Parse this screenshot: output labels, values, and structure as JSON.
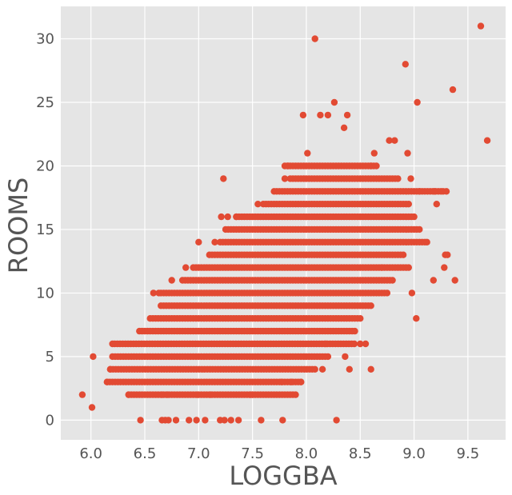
{
  "chart_data": {
    "type": "scatter",
    "title": "",
    "xlabel": "LOGGBA",
    "ylabel": "ROOMS",
    "xlim": [
      5.72,
      9.85
    ],
    "ylim": [
      -1.55,
      32.55
    ],
    "x_ticks": [
      6.0,
      6.5,
      7.0,
      7.5,
      8.0,
      8.5,
      9.0,
      9.5
    ],
    "x_tick_labels": [
      "6.0",
      "6.5",
      "7.0",
      "7.5",
      "8.0",
      "8.5",
      "9.0",
      "9.5"
    ],
    "y_ticks": [
      0,
      5,
      10,
      15,
      20,
      25,
      30
    ],
    "y_tick_labels": [
      "0",
      "5",
      "10",
      "15",
      "20",
      "25",
      "30"
    ],
    "grid": true,
    "style": {
      "background": "#E5E5E5",
      "point_color": "#E24A33",
      "grid_color": "#FFFFFF"
    },
    "series_note": "dense band: for each integer ROOMS value, points span an approximate LOGGBA range",
    "row_ranges": [
      {
        "rooms": 2,
        "x_min": 6.35,
        "x_max": 7.9
      },
      {
        "rooms": 3,
        "x_min": 6.15,
        "x_max": 7.95
      },
      {
        "rooms": 4,
        "x_min": 6.18,
        "x_max": 8.1
      },
      {
        "rooms": 5,
        "x_min": 6.2,
        "x_max": 8.2
      },
      {
        "rooms": 6,
        "x_min": 6.22,
        "x_max": 8.45
      },
      {
        "rooms": 7,
        "x_min": 6.45,
        "x_max": 8.45
      },
      {
        "rooms": 8,
        "x_min": 6.55,
        "x_max": 8.5
      },
      {
        "rooms": 9,
        "x_min": 6.65,
        "x_max": 8.6
      },
      {
        "rooms": 10,
        "x_min": 6.65,
        "x_max": 8.75
      },
      {
        "rooms": 11,
        "x_min": 6.85,
        "x_max": 8.8
      },
      {
        "rooms": 12,
        "x_min": 6.95,
        "x_max": 8.95
      },
      {
        "rooms": 13,
        "x_min": 7.1,
        "x_max": 8.9
      },
      {
        "rooms": 14,
        "x_min": 7.2,
        "x_max": 9.1
      },
      {
        "rooms": 15,
        "x_min": 7.25,
        "x_max": 9.05
      },
      {
        "rooms": 16,
        "x_min": 7.35,
        "x_max": 9.0
      },
      {
        "rooms": 17,
        "x_min": 7.6,
        "x_max": 8.95
      },
      {
        "rooms": 18,
        "x_min": 7.7,
        "x_max": 9.25
      },
      {
        "rooms": 19,
        "x_min": 7.85,
        "x_max": 8.85
      },
      {
        "rooms": 20,
        "x_min": 7.8,
        "x_max": 8.65
      }
    ],
    "points": [
      {
        "x": 5.92,
        "y": 2
      },
      {
        "x": 6.01,
        "y": 1
      },
      {
        "x": 6.02,
        "y": 5
      },
      {
        "x": 6.46,
        "y": 0
      },
      {
        "x": 6.66,
        "y": 0
      },
      {
        "x": 6.69,
        "y": 0
      },
      {
        "x": 6.72,
        "y": 0
      },
      {
        "x": 6.79,
        "y": 0
      },
      {
        "x": 6.91,
        "y": 0
      },
      {
        "x": 6.98,
        "y": 0
      },
      {
        "x": 7.06,
        "y": 0
      },
      {
        "x": 7.2,
        "y": 0
      },
      {
        "x": 7.24,
        "y": 0
      },
      {
        "x": 7.3,
        "y": 0
      },
      {
        "x": 7.37,
        "y": 0
      },
      {
        "x": 7.58,
        "y": 0
      },
      {
        "x": 7.78,
        "y": 0
      },
      {
        "x": 8.28,
        "y": 0
      },
      {
        "x": 6.66,
        "y": 2
      },
      {
        "x": 6.71,
        "y": 2
      },
      {
        "x": 6.99,
        "y": 2
      },
      {
        "x": 7.11,
        "y": 2
      },
      {
        "x": 7.48,
        "y": 2
      },
      {
        "x": 6.58,
        "y": 10
      },
      {
        "x": 6.63,
        "y": 10
      },
      {
        "x": 6.75,
        "y": 11
      },
      {
        "x": 6.88,
        "y": 12
      },
      {
        "x": 7.23,
        "y": 19
      },
      {
        "x": 7.0,
        "y": 14
      },
      {
        "x": 7.15,
        "y": 14
      },
      {
        "x": 7.21,
        "y": 16
      },
      {
        "x": 7.27,
        "y": 16
      },
      {
        "x": 7.35,
        "y": 16
      },
      {
        "x": 7.55,
        "y": 17
      },
      {
        "x": 7.8,
        "y": 19
      },
      {
        "x": 7.83,
        "y": 20
      },
      {
        "x": 7.97,
        "y": 24
      },
      {
        "x": 8.08,
        "y": 30
      },
      {
        "x": 8.13,
        "y": 24
      },
      {
        "x": 8.2,
        "y": 24
      },
      {
        "x": 8.26,
        "y": 25
      },
      {
        "x": 8.35,
        "y": 23
      },
      {
        "x": 8.38,
        "y": 24
      },
      {
        "x": 8.01,
        "y": 21
      },
      {
        "x": 8.6,
        "y": 20
      },
      {
        "x": 8.63,
        "y": 21
      },
      {
        "x": 8.77,
        "y": 22
      },
      {
        "x": 8.82,
        "y": 22
      },
      {
        "x": 8.92,
        "y": 28
      },
      {
        "x": 8.94,
        "y": 21
      },
      {
        "x": 8.97,
        "y": 19
      },
      {
        "x": 9.03,
        "y": 25
      },
      {
        "x": 9.05,
        "y": 18
      },
      {
        "x": 9.12,
        "y": 14
      },
      {
        "x": 9.18,
        "y": 11
      },
      {
        "x": 9.19,
        "y": 18
      },
      {
        "x": 9.21,
        "y": 17
      },
      {
        "x": 9.27,
        "y": 18
      },
      {
        "x": 9.28,
        "y": 12
      },
      {
        "x": 9.29,
        "y": 13
      },
      {
        "x": 9.31,
        "y": 13
      },
      {
        "x": 9.3,
        "y": 18
      },
      {
        "x": 9.36,
        "y": 26
      },
      {
        "x": 9.38,
        "y": 11
      },
      {
        "x": 9.62,
        "y": 31
      },
      {
        "x": 9.68,
        "y": 22
      },
      {
        "x": 9.02,
        "y": 8
      },
      {
        "x": 8.98,
        "y": 10
      },
      {
        "x": 8.7,
        "y": 12
      },
      {
        "x": 8.55,
        "y": 6
      },
      {
        "x": 8.6,
        "y": 4
      },
      {
        "x": 8.5,
        "y": 6
      },
      {
        "x": 8.4,
        "y": 4
      },
      {
        "x": 8.36,
        "y": 5
      },
      {
        "x": 8.15,
        "y": 4
      },
      {
        "x": 8.18,
        "y": 6
      },
      {
        "x": 7.95,
        "y": 3
      },
      {
        "x": 7.86,
        "y": 3
      },
      {
        "x": 7.77,
        "y": 3
      },
      {
        "x": 7.5,
        "y": 2
      },
      {
        "x": 6.35,
        "y": 2
      },
      {
        "x": 6.2,
        "y": 6
      },
      {
        "x": 6.18,
        "y": 4
      },
      {
        "x": 6.15,
        "y": 3
      }
    ]
  }
}
